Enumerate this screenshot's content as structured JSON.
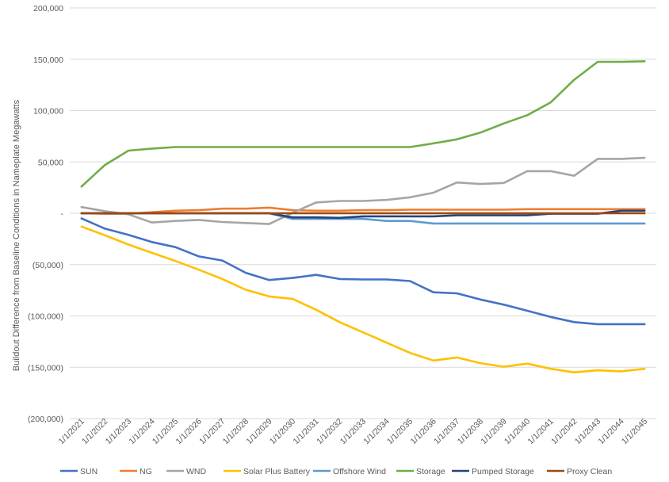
{
  "chart_data": {
    "type": "line",
    "title": "",
    "xlabel": "",
    "ylabel": "Buildout Difference from Baseline Conditions in Nameplate Megawatts",
    "ylim": [
      -200000,
      200000
    ],
    "yticks": [
      200000,
      150000,
      100000,
      50000,
      0,
      -50000,
      -100000,
      -150000,
      -200000
    ],
    "ytick_labels": [
      "200,000",
      "150,000",
      "100,000",
      "50,000",
      "-",
      "(50,000)",
      "(100,000)",
      "(150,000)",
      "(200,000)"
    ],
    "grid": true,
    "legend_position": "bottom",
    "categories": [
      "1/1/2021",
      "1/1/2022",
      "1/1/2023",
      "1/1/2024",
      "1/1/2025",
      "1/1/2026",
      "1/1/2027",
      "1/1/2028",
      "1/1/2029",
      "1/1/2030",
      "1/1/2031",
      "1/1/2032",
      "1/1/2033",
      "1/1/2034",
      "1/1/2035",
      "1/1/2036",
      "1/1/2037",
      "1/1/2038",
      "1/1/2039",
      "1/1/2040",
      "1/1/2041",
      "1/1/2042",
      "1/1/2043",
      "1/1/2044",
      "1/1/2045"
    ],
    "series": [
      {
        "name": "SUN",
        "color": "#4472C4",
        "values": [
          -5000,
          -15000,
          -21000,
          -28000,
          -33000,
          -42000,
          -46000,
          -58000,
          -65000,
          -63000,
          -60000,
          -64000,
          -64500,
          -64500,
          -66000,
          -77000,
          -78000,
          -84000,
          -89000,
          -95000,
          -101000,
          -106000,
          -108000,
          -108000,
          -108000
        ]
      },
      {
        "name": "NG",
        "color": "#ED7D31",
        "values": [
          0,
          -500,
          -500,
          1000,
          2500,
          3000,
          4500,
          4500,
          5500,
          3000,
          2500,
          2500,
          3000,
          3000,
          3500,
          3500,
          3500,
          3500,
          3500,
          4000,
          4000,
          4000,
          4000,
          4000,
          4000
        ]
      },
      {
        "name": "WND",
        "color": "#A5A5A5",
        "values": [
          6000,
          2000,
          -1000,
          -9000,
          -7500,
          -6500,
          -8500,
          -9500,
          -10500,
          500,
          10500,
          12000,
          12000,
          13000,
          15500,
          20000,
          30000,
          28500,
          29500,
          41000,
          41000,
          36500,
          53000,
          53000,
          54000
        ]
      },
      {
        "name": "Solar Plus Battery",
        "color": "#FFC000",
        "values": [
          -13000,
          -21500,
          -30500,
          -38500,
          -46500,
          -55000,
          -64000,
          -74500,
          -81000,
          -83500,
          -94000,
          -106000,
          -116000,
          -126000,
          -136000,
          -143500,
          -140500,
          -146000,
          -149500,
          -146500,
          -151500,
          -155000,
          -153000,
          -154000,
          -151500
        ]
      },
      {
        "name": "Offshore Wind",
        "color": "#5B9BD5",
        "values": [
          0,
          0,
          0,
          0,
          0,
          0,
          0,
          0,
          0,
          -5500,
          -5500,
          -5500,
          -5500,
          -7500,
          -7500,
          -10000,
          -10000,
          -10000,
          -10000,
          -10000,
          -10000,
          -10000,
          -10000,
          -10000,
          -10000
        ]
      },
      {
        "name": "Storage",
        "color": "#70AD47",
        "values": [
          26000,
          47000,
          61000,
          63000,
          64500,
          64500,
          64500,
          64500,
          64500,
          64500,
          64500,
          64500,
          64500,
          64500,
          64500,
          68000,
          72000,
          78500,
          87500,
          95500,
          108000,
          130000,
          147500,
          147500,
          148000
        ]
      },
      {
        "name": "Pumped Storage",
        "color": "#264478",
        "values": [
          0,
          0,
          0,
          0,
          0,
          0,
          0,
          0,
          0,
          -4000,
          -4000,
          -4500,
          -3000,
          -3000,
          -3000,
          -3000,
          -2000,
          -2000,
          -2000,
          -2000,
          -500,
          -500,
          -500,
          2500,
          2500
        ]
      },
      {
        "name": "Proxy Clean",
        "color": "#9E480E",
        "values": [
          0,
          0,
          0,
          0,
          0,
          0,
          0,
          0,
          0,
          0,
          0,
          0,
          0,
          0,
          0,
          0,
          0,
          0,
          0,
          0,
          0,
          0,
          0,
          0,
          0
        ]
      }
    ]
  }
}
